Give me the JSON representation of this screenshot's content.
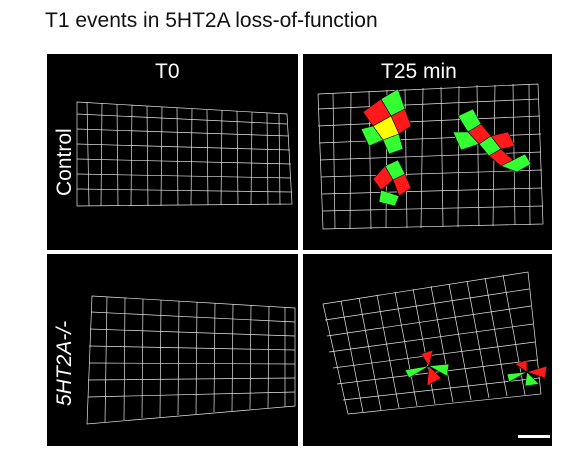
{
  "figure": {
    "title": "T1 events in 5HT2A loss-of-function",
    "columns": [
      "T0",
      "T25 min"
    ],
    "rows": [
      "Control",
      "5HT2A-/-"
    ]
  },
  "colors": {
    "background": "#000000",
    "cell_outline": "#e6e6e6",
    "t1_red": "#ff1a1a",
    "t1_green": "#33ff33",
    "t1_yellow": "#ffff00"
  },
  "scale_bar": {
    "present": true
  }
}
